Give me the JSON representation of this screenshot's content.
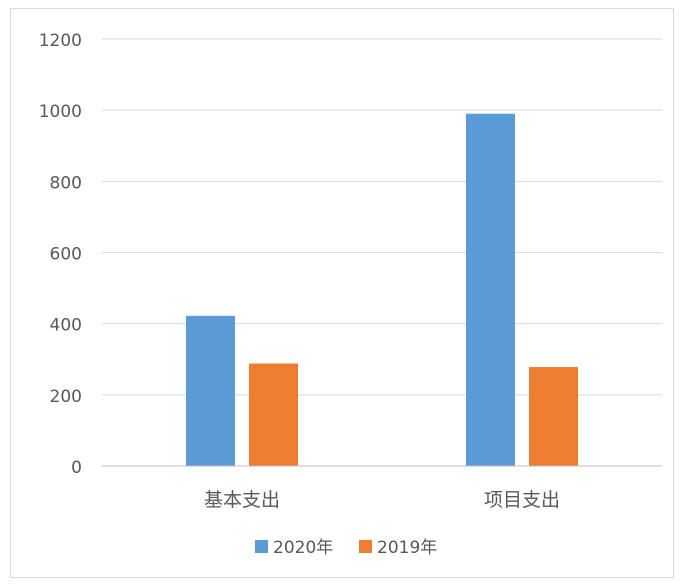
{
  "chart_data": {
    "type": "bar",
    "title": "",
    "xlabel": "",
    "ylabel": "",
    "categories": [
      "基本支出",
      "项目支出"
    ],
    "series": [
      {
        "name": "2020年",
        "values": [
          422,
          990
        ],
        "color": "#5B9BD5"
      },
      {
        "name": "2019年",
        "values": [
          288,
          278
        ],
        "color": "#ED7D31"
      }
    ],
    "yticks": [
      0,
      200,
      400,
      600,
      800,
      1000,
      1200
    ],
    "ylim": [
      0,
      1200
    ],
    "grid": true,
    "legend_position": "bottom"
  }
}
